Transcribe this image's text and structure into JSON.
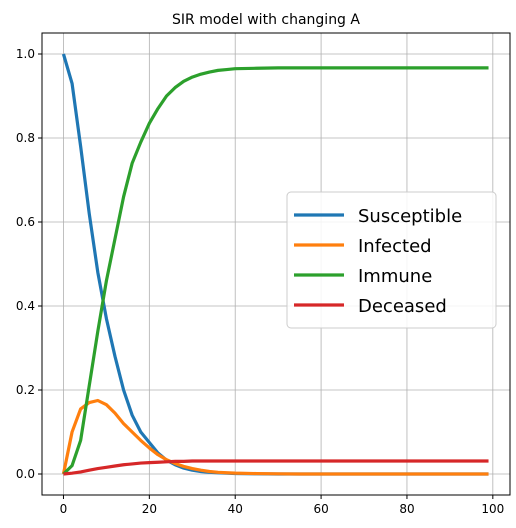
{
  "chart_data": {
    "type": "line",
    "title": "SIR model with changing A",
    "xlabel": "",
    "ylabel": "",
    "xlim": [
      -5,
      104
    ],
    "ylim": [
      -0.05,
      1.05
    ],
    "xticks": [
      0,
      20,
      40,
      60,
      80,
      100
    ],
    "yticks": [
      0.0,
      0.2,
      0.4,
      0.6,
      0.8,
      1.0
    ],
    "xtick_labels": [
      "0",
      "20",
      "40",
      "60",
      "80",
      "100"
    ],
    "ytick_labels": [
      "0.0",
      "0.2",
      "0.4",
      "0.6",
      "0.8",
      "1.0"
    ],
    "grid": true,
    "legend_position": "center-right",
    "x": [
      0,
      2,
      4,
      6,
      8,
      10,
      12,
      14,
      16,
      18,
      20,
      22,
      24,
      26,
      28,
      30,
      32,
      34,
      36,
      38,
      40,
      45,
      50,
      55,
      60,
      70,
      80,
      90,
      99
    ],
    "series": [
      {
        "name": "Susceptible",
        "color": "#1f77b4",
        "values": [
          1.0,
          0.93,
          0.78,
          0.62,
          0.48,
          0.37,
          0.28,
          0.2,
          0.14,
          0.1,
          0.075,
          0.05,
          0.033,
          0.022,
          0.014,
          0.009,
          0.006,
          0.004,
          0.003,
          0.002,
          0.001,
          0.0005,
          0.0,
          0.0,
          0.0,
          0.0,
          0.0,
          0.0,
          0.0
        ]
      },
      {
        "name": "Infected",
        "color": "#ff7f0e",
        "values": [
          0.0,
          0.1,
          0.155,
          0.17,
          0.175,
          0.165,
          0.145,
          0.12,
          0.1,
          0.08,
          0.062,
          0.046,
          0.034,
          0.025,
          0.018,
          0.013,
          0.009,
          0.006,
          0.004,
          0.003,
          0.002,
          0.001,
          0.0005,
          0.0,
          0.0,
          0.0,
          0.0,
          0.0,
          0.0
        ]
      },
      {
        "name": "Immune",
        "color": "#2ca02c",
        "values": [
          0.0,
          0.02,
          0.08,
          0.21,
          0.34,
          0.46,
          0.56,
          0.66,
          0.74,
          0.79,
          0.835,
          0.87,
          0.9,
          0.92,
          0.935,
          0.945,
          0.952,
          0.957,
          0.961,
          0.963,
          0.965,
          0.966,
          0.967,
          0.967,
          0.967,
          0.967,
          0.967,
          0.967,
          0.967
        ]
      },
      {
        "name": "Deceased",
        "color": "#d62728",
        "values": [
          0.0,
          0.002,
          0.005,
          0.009,
          0.013,
          0.016,
          0.019,
          0.022,
          0.024,
          0.026,
          0.027,
          0.028,
          0.029,
          0.03,
          0.03,
          0.031,
          0.031,
          0.031,
          0.031,
          0.031,
          0.031,
          0.031,
          0.031,
          0.031,
          0.031,
          0.031,
          0.031,
          0.031,
          0.031
        ]
      }
    ]
  }
}
